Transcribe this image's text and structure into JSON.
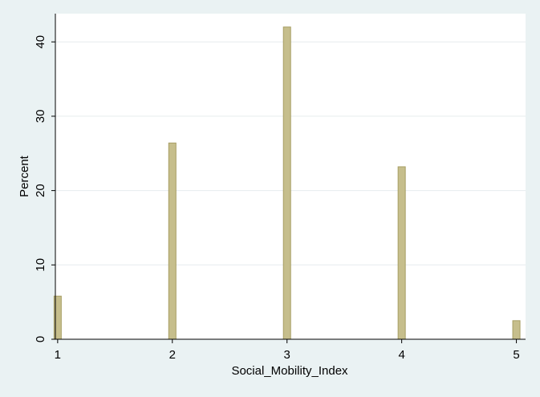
{
  "chart_data": {
    "type": "bar",
    "title": "",
    "xlabel": "Social_Mobility_Index",
    "ylabel": "Percent",
    "x": [
      1,
      2,
      3,
      4,
      5
    ],
    "values": [
      5.8,
      26.4,
      42.0,
      23.2,
      2.5
    ],
    "xlim": [
      0.98,
      5.08
    ],
    "ylim": [
      0,
      43.8
    ],
    "x_ticks": [
      1,
      2,
      3,
      4,
      5
    ],
    "y_ticks": [
      0,
      10,
      20,
      30,
      40
    ],
    "grid": true,
    "colors": {
      "background": "#eaf2f3",
      "plot_background": "#ffffff",
      "bar_fill": "#c6be8c",
      "bar_edge": "#a79e63",
      "grid": "#e6ecee"
    }
  }
}
